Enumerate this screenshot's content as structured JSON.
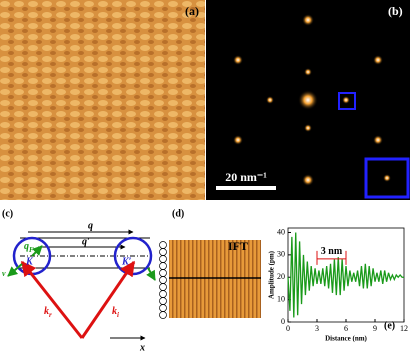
{
  "panels": {
    "a": "(a)",
    "b": "(b)",
    "c": "(c)",
    "d": "(d)",
    "e": "(e)"
  },
  "scale_bar": "20 nm⁻¹",
  "diagram": {
    "q": "q",
    "q_prime": "q′",
    "q_F": {
      "base": "q",
      "sub": "F"
    },
    "K": "K",
    "K_prime": "K′",
    "k_r": {
      "base": "k",
      "sub": "r"
    },
    "k_i": {
      "base": "k",
      "sub": "i"
    },
    "x": "x",
    "v": "v"
  },
  "ift": "IFT",
  "chart_data": {
    "type": "line",
    "x_label": "Distance (nm)",
    "y_label": "Amplitude (pm)",
    "annotation": "3 nm",
    "color": "#1a9a1a",
    "x": [
      0,
      0.2,
      0.4,
      0.6,
      0.8,
      1,
      1.2,
      1.4,
      1.6,
      1.8,
      2,
      2.2,
      2.4,
      2.6,
      2.8,
      3,
      3.2,
      3.4,
      3.6,
      3.8,
      4,
      4.2,
      4.4,
      4.6,
      4.8,
      5,
      5.2,
      5.4,
      5.6,
      5.8,
      6,
      6.2,
      6.4,
      6.6,
      6.8,
      7,
      7.2,
      7.4,
      7.6,
      7.8,
      8,
      8.2,
      8.4,
      8.6,
      8.8,
      9,
      9.2,
      9.4,
      9.6,
      9.8,
      10,
      10.2,
      10.4,
      10.6,
      10.8,
      11,
      11.2,
      11.4,
      11.6,
      11.8,
      12
    ],
    "values": [
      20,
      5,
      38,
      2,
      40,
      3,
      36,
      8,
      30,
      12,
      27,
      14,
      25,
      16,
      24,
      17,
      23,
      17,
      24,
      16,
      25,
      15,
      26,
      13,
      28,
      12,
      29,
      12,
      28,
      14,
      25,
      16,
      23,
      18,
      22,
      18,
      23,
      16,
      25,
      15,
      26,
      15,
      25,
      16,
      24,
      18,
      22,
      18,
      23,
      17,
      23,
      18,
      22,
      19,
      21,
      19,
      21,
      20,
      21,
      20,
      20
    ],
    "xlim": [
      0,
      12
    ],
    "ylim": [
      0,
      42
    ],
    "xticks": [
      0,
      3,
      6,
      9,
      12
    ],
    "yticks": [
      0,
      10,
      20,
      30,
      40
    ]
  }
}
